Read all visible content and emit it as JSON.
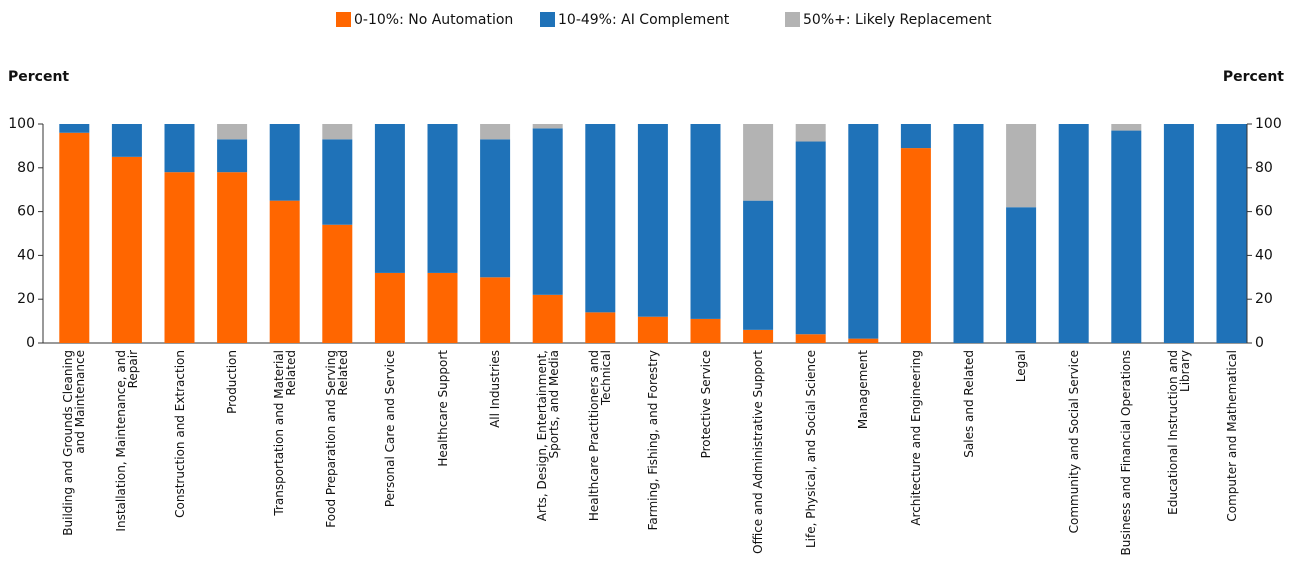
{
  "chart_data": {
    "type": "stacked_bar",
    "y_label": "Percent",
    "y2_label": "Percent",
    "categories": [
      "Building and Grounds Cleaning and Maintenance",
      "Installation, Maintenance, and Repair",
      "Construction and Extraction",
      "Production",
      "Transportation and Material Related",
      "Food Preparation and Serving Related",
      "Personal Care and Service",
      "Healthcare Support",
      "All Industries",
      "Arts, Design, Entertainment, Sports, and Media",
      "Healthcare Practitioners and Technical",
      "Farming, Fishing, and Forestry",
      "Protective Service",
      "Office and Administrative Support",
      "Life, Physical, and Social Science",
      "Management",
      "Architecture and Engineering",
      "Sales and Related",
      "Legal",
      "Community and Social Service",
      "Business and Financial Operations",
      "Educational Instruction and Library",
      "Computer and Mathematical"
    ],
    "series": [
      {
        "name": "0-10%: No Automation",
        "color": "#ff6600",
        "values": [
          96,
          85,
          78,
          78,
          65,
          54,
          32,
          32,
          30,
          22,
          14,
          12,
          11,
          6,
          4,
          2,
          89,
          0,
          0,
          0,
          0,
          0,
          0
        ]
      },
      {
        "name": "10-49%: AI Complement",
        "color": "#1f72b8",
        "values": [
          4,
          15,
          22,
          15,
          35,
          39,
          68,
          68,
          63,
          76,
          86,
          88,
          89,
          59,
          88,
          98,
          11,
          100,
          62,
          100,
          97,
          100,
          100
        ]
      },
      {
        "name": "50%+: Likely Replacement",
        "color": "#b3b3b3",
        "values": [
          0,
          0,
          0,
          7,
          0,
          7,
          0,
          0,
          7,
          2,
          0,
          0,
          0,
          35,
          8,
          0,
          0,
          0,
          38,
          0,
          3,
          0,
          0
        ]
      }
    ],
    "ylim": [
      0,
      100
    ],
    "yticks": [
      0,
      20,
      40,
      60,
      80,
      100
    ],
    "y2lim": [
      0,
      100
    ],
    "y2ticks": [
      0,
      20,
      40,
      60,
      80,
      100
    ],
    "legend": "top"
  }
}
